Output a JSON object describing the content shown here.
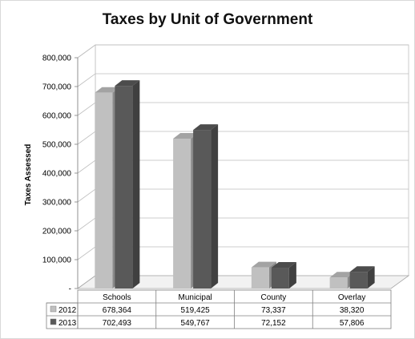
{
  "chart_data": {
    "type": "bar",
    "title": "Taxes by Unit of Government",
    "ylabel": "Taxes Assessed",
    "xlabel": "",
    "categories": [
      "Schools",
      "Municipal",
      "County",
      "Overlay"
    ],
    "series": [
      {
        "name": "2012",
        "values": [
          678364,
          519425,
          73337,
          38320
        ],
        "labels": [
          "678,364",
          "519,425",
          "73,337",
          "38,320"
        ],
        "color": "#c0c0c0"
      },
      {
        "name": "2013",
        "values": [
          702493,
          549767,
          72152,
          57806
        ],
        "labels": [
          "702,493",
          "549,767",
          "72,152",
          "57,806"
        ],
        "color": "#595959"
      }
    ],
    "ylim": [
      0,
      800000
    ],
    "yticks": [
      0,
      100000,
      200000,
      300000,
      400000,
      500000,
      600000,
      700000,
      800000
    ],
    "ytick_labels": [
      "-",
      "100,000",
      "200,000",
      "300,000",
      "400,000",
      "500,000",
      "600,000",
      "700,000",
      "800,000"
    ],
    "grid": true,
    "legend": "data-table",
    "bar_style": "3d"
  }
}
